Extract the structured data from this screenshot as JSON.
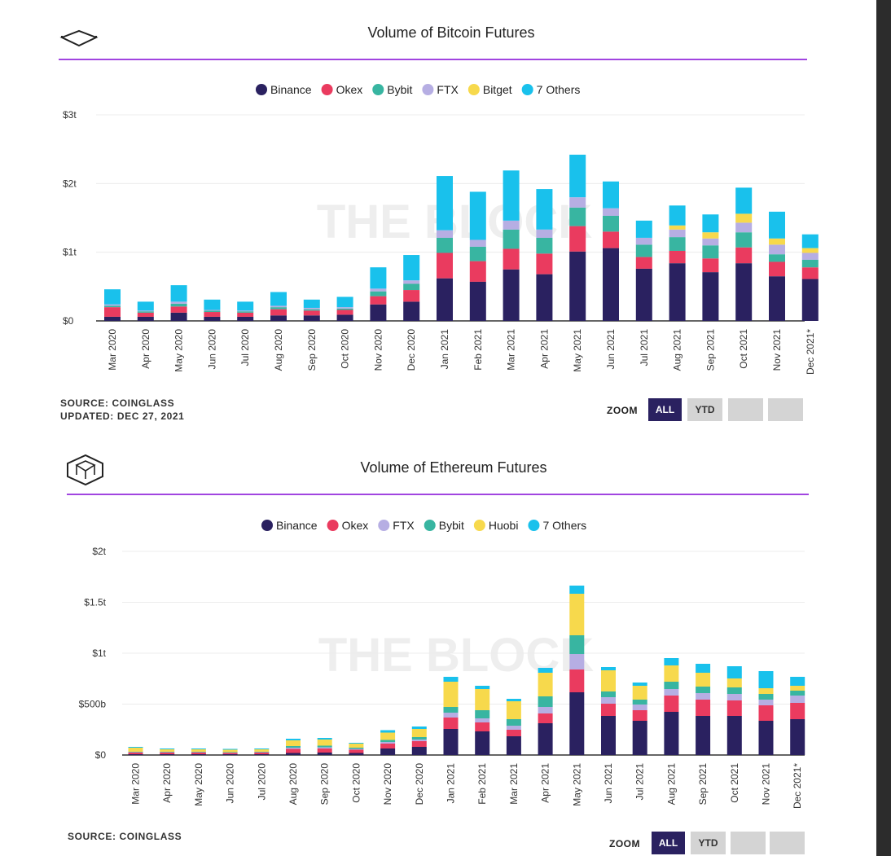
{
  "colors": {
    "Binance": "#2a2160",
    "Okex": "#ea3b5f",
    "Bybit": "#38b5a1",
    "FTX": "#b6aee3",
    "Bitget": "#f7d94c",
    "Huobi": "#f7d94c",
    "7 Others": "#19c1ec",
    "accent_line": "#a145e0",
    "watermark": "#eeeeee"
  },
  "watermark": "THE BLOCK",
  "chart_data": [
    {
      "type": "bar",
      "stacked": true,
      "title": "Volume of Bitcoin Futures",
      "categories": [
        "Mar 2020",
        "Apr 2020",
        "May 2020",
        "Jun 2020",
        "Jul 2020",
        "Aug 2020",
        "Sep 2020",
        "Oct 2020",
        "Nov 2020",
        "Dec 2020",
        "Jan 2021",
        "Feb 2021",
        "Mar 2021",
        "Apr 2021",
        "May 2021",
        "Jun 2021",
        "Jul 2021",
        "Aug 2021",
        "Sep 2021",
        "Oct 2021",
        "Nov 2021",
        "Dec 2021*"
      ],
      "unit": "trillion USD",
      "y_ticks": [
        "$0",
        "$1t",
        "$2t",
        "$3t"
      ],
      "ylim": [
        0,
        3
      ],
      "grid": true,
      "legend_position": "top-center",
      "series": [
        {
          "name": "Binance",
          "values": [
            0.06,
            0.06,
            0.12,
            0.06,
            0.06,
            0.08,
            0.08,
            0.09,
            0.24,
            0.28,
            0.62,
            0.57,
            0.75,
            0.68,
            1.01,
            1.06,
            0.76,
            0.84,
            0.71,
            0.84,
            0.65,
            0.61
          ]
        },
        {
          "name": "Okex",
          "values": [
            0.14,
            0.06,
            0.09,
            0.07,
            0.06,
            0.09,
            0.07,
            0.07,
            0.12,
            0.17,
            0.37,
            0.3,
            0.3,
            0.3,
            0.37,
            0.24,
            0.17,
            0.18,
            0.2,
            0.23,
            0.21,
            0.17
          ]
        },
        {
          "name": "Bybit",
          "values": [
            0.02,
            0.02,
            0.04,
            0.02,
            0.02,
            0.03,
            0.02,
            0.02,
            0.07,
            0.09,
            0.22,
            0.21,
            0.28,
            0.23,
            0.27,
            0.23,
            0.18,
            0.2,
            0.19,
            0.22,
            0.11,
            0.11
          ]
        },
        {
          "name": "FTX",
          "values": [
            0.02,
            0.01,
            0.03,
            0.01,
            0.01,
            0.02,
            0.02,
            0.02,
            0.04,
            0.05,
            0.11,
            0.1,
            0.13,
            0.12,
            0.15,
            0.11,
            0.1,
            0.11,
            0.1,
            0.14,
            0.14,
            0.1
          ]
        },
        {
          "name": "Bitget",
          "values": [
            0,
            0,
            0,
            0,
            0,
            0,
            0,
            0,
            0,
            0,
            0,
            0,
            0,
            0,
            0,
            0,
            0,
            0.06,
            0.09,
            0.13,
            0.09,
            0.07
          ]
        },
        {
          "name": "7 Others",
          "values": [
            0.22,
            0.13,
            0.24,
            0.15,
            0.13,
            0.2,
            0.12,
            0.15,
            0.31,
            0.37,
            0.79,
            0.7,
            0.73,
            0.59,
            0.62,
            0.39,
            0.25,
            0.29,
            0.26,
            0.38,
            0.39,
            0.2
          ]
        }
      ]
    },
    {
      "type": "bar",
      "stacked": true,
      "title": "Volume of Ethereum Futures",
      "categories": [
        "Mar 2020",
        "Apr 2020",
        "May 2020",
        "Jun 2020",
        "Jul 2020",
        "Aug 2020",
        "Sep 2020",
        "Oct 2020",
        "Nov 2020",
        "Dec 2020",
        "Jan 2021",
        "Feb 2021",
        "Mar 2021",
        "Apr 2021",
        "May 2021",
        "Jun 2021",
        "Jul 2021",
        "Aug 2021",
        "Sep 2021",
        "Oct 2021",
        "Nov 2021",
        "Dec 2021*"
      ],
      "unit": "billion USD",
      "y_ticks": [
        "$0",
        "$500b",
        "$1t",
        "$1.5t",
        "$2t"
      ],
      "ylim": [
        0,
        2000
      ],
      "grid": true,
      "legend_position": "top-center",
      "series": [
        {
          "name": "Binance",
          "values": [
            8,
            8,
            8,
            8,
            8,
            20,
            24,
            20,
            64,
            80,
            256,
            232,
            184,
            312,
            616,
            384,
            336,
            424,
            384,
            384,
            336,
            352
          ]
        },
        {
          "name": "Okex",
          "values": [
            16,
            16,
            16,
            12,
            16,
            40,
            40,
            32,
            48,
            56,
            112,
            88,
            64,
            96,
            224,
            120,
            104,
            160,
            160,
            152,
            152,
            160
          ]
        },
        {
          "name": "FTX",
          "values": [
            4,
            4,
            4,
            4,
            4,
            12,
            12,
            8,
            16,
            16,
            48,
            40,
            40,
            64,
            152,
            64,
            56,
            64,
            64,
            64,
            56,
            72
          ]
        },
        {
          "name": "Bybit",
          "values": [
            4,
            4,
            4,
            4,
            4,
            16,
            16,
            12,
            20,
            24,
            56,
            80,
            64,
            104,
            184,
            56,
            48,
            72,
            64,
            64,
            56,
            48
          ]
        },
        {
          "name": "Huobi",
          "values": [
            40,
            24,
            24,
            24,
            24,
            56,
            60,
            40,
            72,
            80,
            248,
            208,
            176,
            232,
            408,
            208,
            136,
            160,
            136,
            88,
            56,
            48
          ]
        },
        {
          "name": "7 Others",
          "values": [
            8,
            8,
            8,
            8,
            8,
            16,
            16,
            8,
            24,
            24,
            48,
            32,
            24,
            48,
            80,
            32,
            32,
            72,
            88,
            120,
            168,
            88
          ]
        }
      ]
    }
  ],
  "chart1_footer": {
    "source": "SOURCE: COINGLASS",
    "updated": "UPDATED: DEC 27, 2021"
  },
  "chart2_footer": {
    "source": "SOURCE: COINGLASS"
  },
  "zoom": {
    "label": "ZOOM",
    "all": "ALL",
    "ytd": "YTD"
  }
}
